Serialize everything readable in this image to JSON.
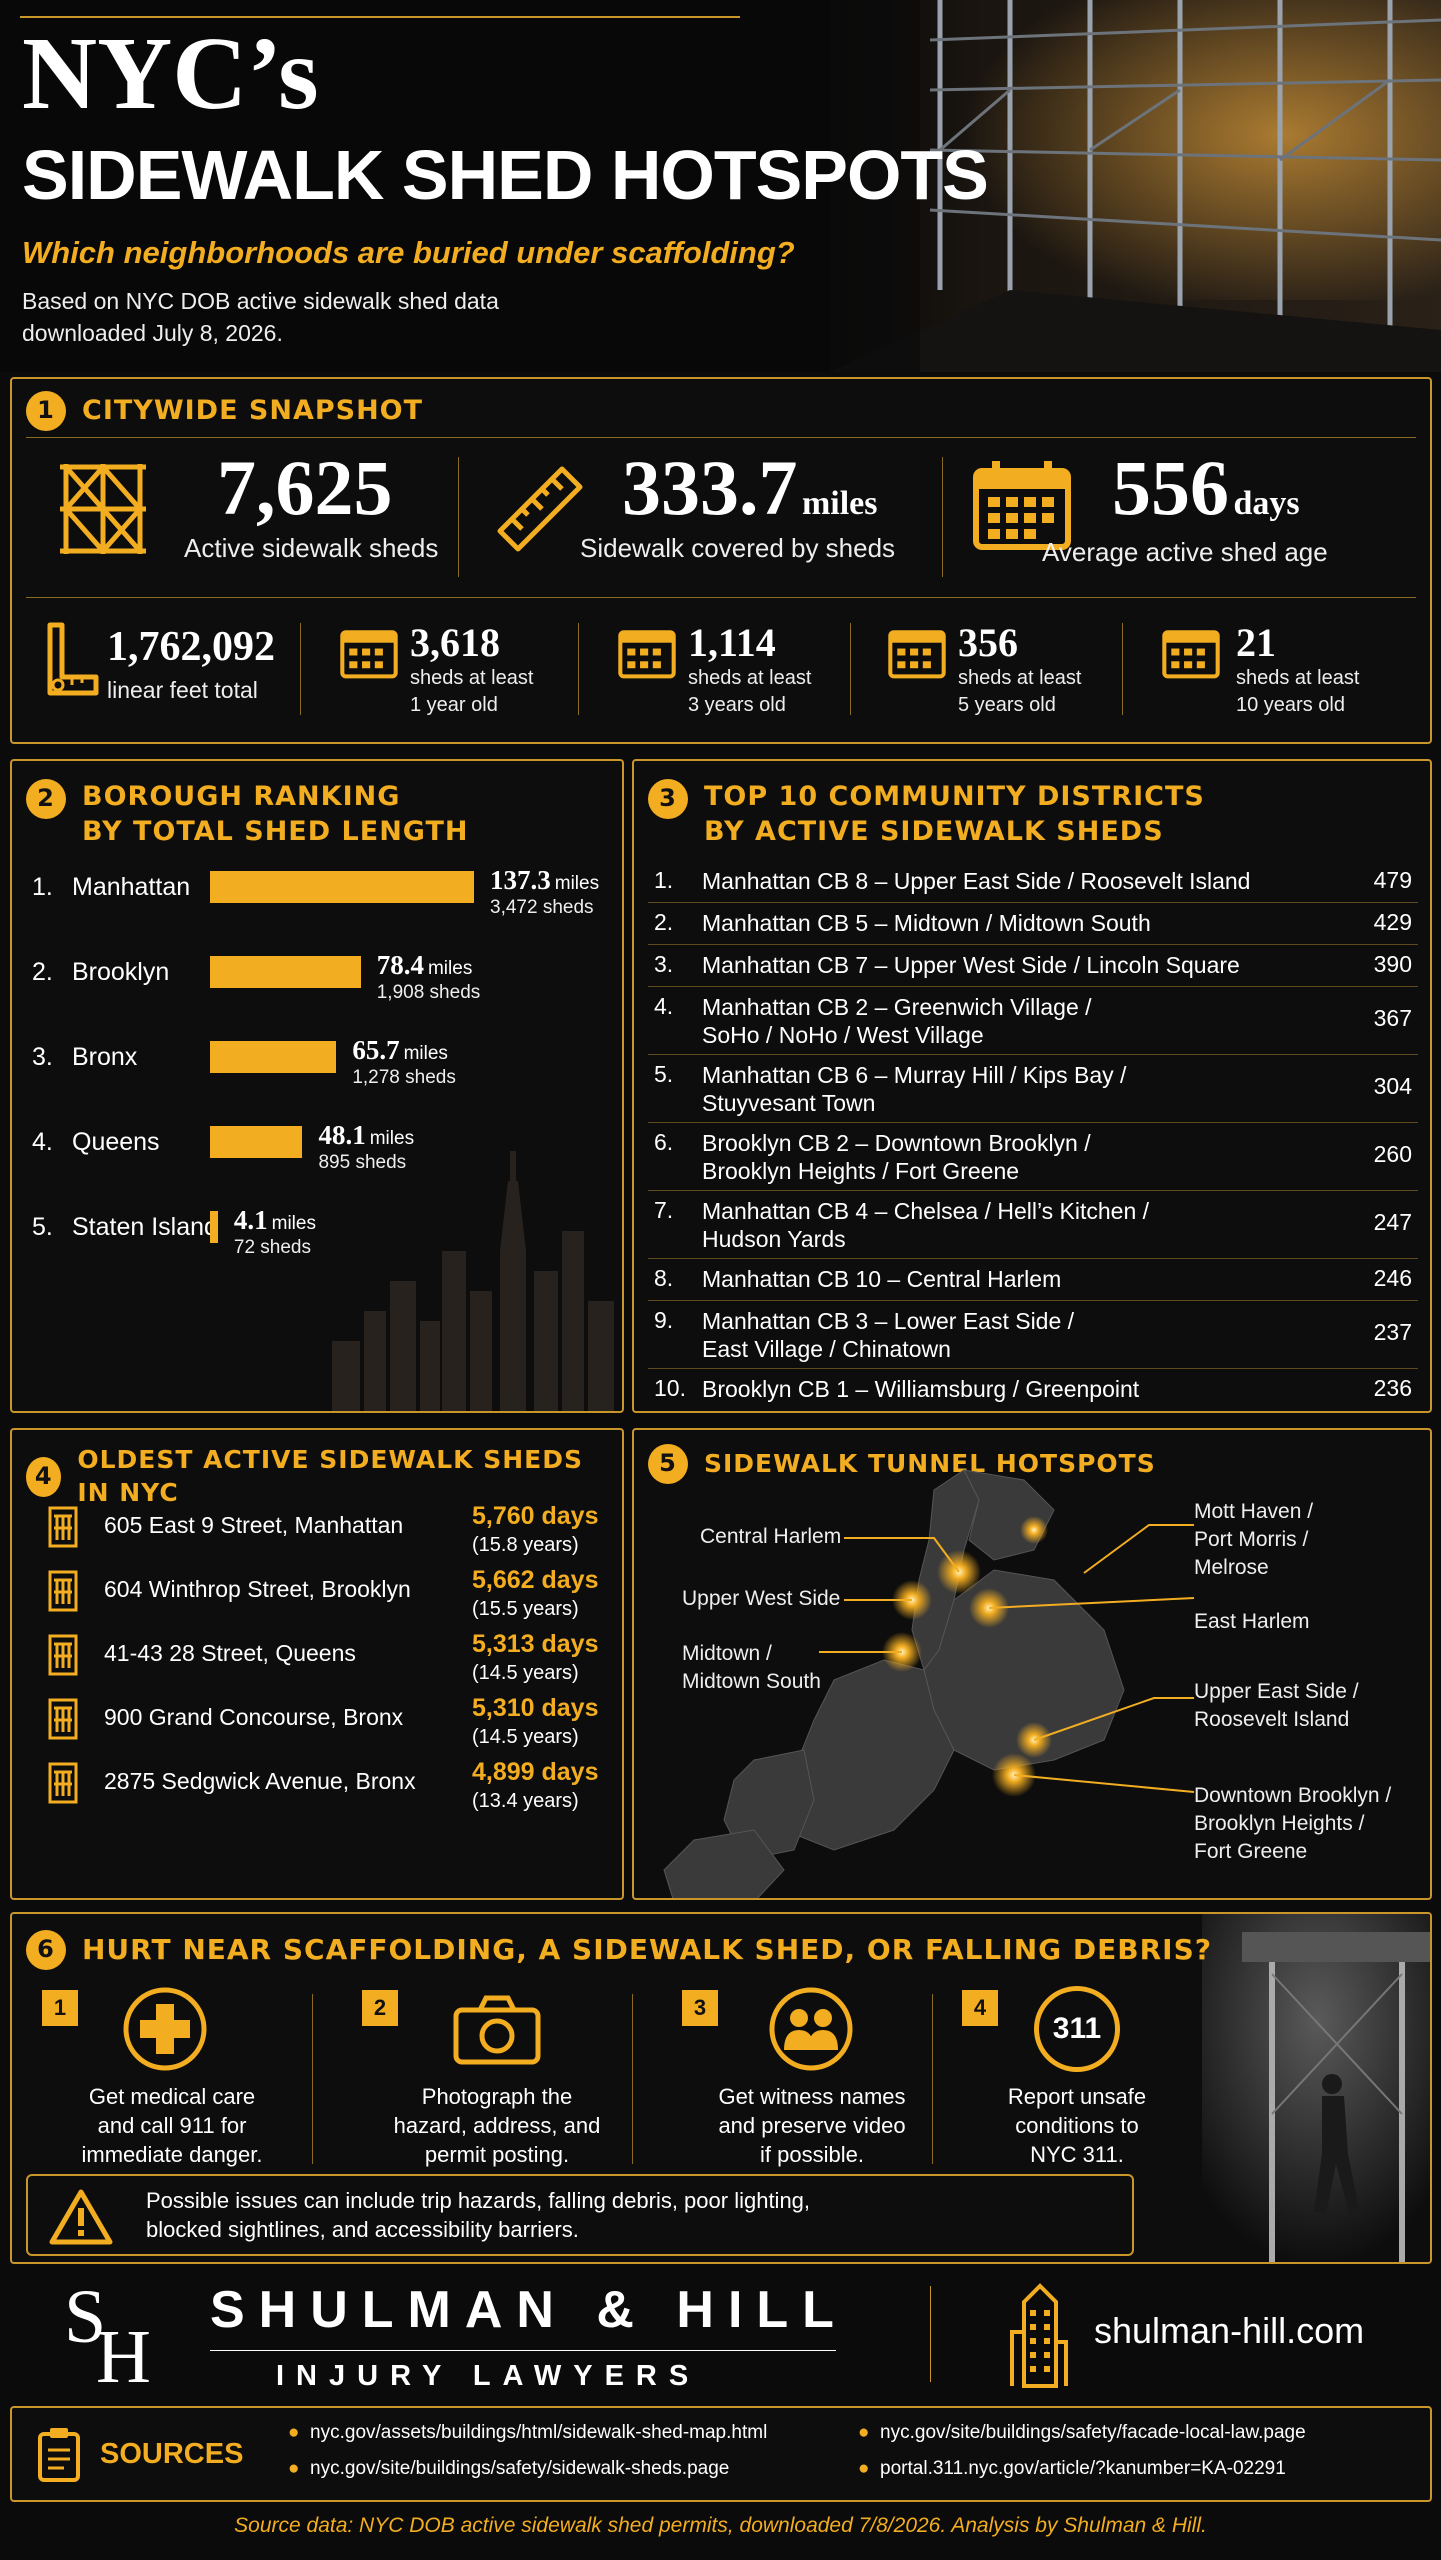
{
  "header": {
    "title_line1": "NYC’s",
    "title_line2": "SIDEWALK SHED HOTSPOTS",
    "subtitle": "Which neighborhoods are buried under scaffolding?",
    "description_line1": "Based on NYC DOB active sidewalk shed data",
    "description_line2": "downloaded July 8, 2026."
  },
  "snapshot": {
    "number": "1",
    "title": "CITYWIDE SNAPSHOT",
    "main_stats": [
      {
        "value": "7,625",
        "unit": "",
        "label": "Active sidewalk sheds",
        "icon": "scaffold-icon"
      },
      {
        "value": "333.7",
        "unit": "miles",
        "label": "Sidewalk covered by sheds",
        "icon": "ruler-icon"
      },
      {
        "value": "556",
        "unit": "days",
        "label": "Average active shed age",
        "icon": "calendar-icon"
      }
    ],
    "sub_stats": [
      {
        "value": "1,762,092",
        "label1": "linear feet total",
        "label2": "",
        "icon": "measuring-tape-icon"
      },
      {
        "value": "3,618",
        "label1": "sheds at least",
        "label2": "1 year old",
        "icon": "calendar-icon"
      },
      {
        "value": "1,114",
        "label1": "sheds at least",
        "label2": "3 years old",
        "icon": "calendar-icon"
      },
      {
        "value": "356",
        "label1": "sheds at least",
        "label2": "5 years old",
        "icon": "calendar-icon"
      },
      {
        "value": "21",
        "label1": "sheds at least",
        "label2": "10 years old",
        "icon": "calendar-icon"
      }
    ]
  },
  "borough": {
    "number": "2",
    "title_line1": "BOROUGH RANKING",
    "title_line2": "BY TOTAL SHED LENGTH",
    "unit": "miles"
  },
  "chart_data": {
    "type": "bar",
    "title": "BOROUGH RANKING BY TOTAL SHED LENGTH",
    "categories": [
      "Manhattan",
      "Brooklyn",
      "Bronx",
      "Queens",
      "Staten Island"
    ],
    "ranks": [
      "1.",
      "2.",
      "3.",
      "4.",
      "5."
    ],
    "values": [
      137.3,
      78.4,
      65.7,
      48.1,
      4.1
    ],
    "value_labels": [
      "137.3",
      "78.4",
      "65.7",
      "48.1",
      "4.1"
    ],
    "sheds": [
      "3,472 sheds",
      "1,908 sheds",
      "1,278 sheds",
      "895 sheds",
      "72 sheds"
    ],
    "bar_color": "#f2ad21"
  },
  "districts": {
    "number": "3",
    "title_line1": "TOP 10 COMMUNITY DISTRICTS",
    "title_line2": "BY ACTIVE SIDEWALK SHEDS",
    "rows": [
      {
        "rank": "1.",
        "line1": "Manhattan CB 8 – Upper East Side / Roosevelt Island",
        "line2": "",
        "count": "479"
      },
      {
        "rank": "2.",
        "line1": "Manhattan CB 5 – Midtown / Midtown South",
        "line2": "",
        "count": "429"
      },
      {
        "rank": "3.",
        "line1": "Manhattan CB 7 – Upper West Side / Lincoln Square",
        "line2": "",
        "count": "390"
      },
      {
        "rank": "4.",
        "line1": "Manhattan CB 2 – Greenwich Village /",
        "line2": "SoHo / NoHo / West Village",
        "count": "367"
      },
      {
        "rank": "5.",
        "line1": "Manhattan CB 6 – Murray Hill / Kips Bay /",
        "line2": "Stuyvesant Town",
        "count": "304"
      },
      {
        "rank": "6.",
        "line1": "Brooklyn CB 2 –  Downtown Brooklyn /",
        "line2": "Brooklyn Heights / Fort Greene",
        "count": "260"
      },
      {
        "rank": "7.",
        "line1": "Manhattan CB 4 – Chelsea / Hell’s Kitchen /",
        "line2": "Hudson Yards",
        "count": "247"
      },
      {
        "rank": "8.",
        "line1": "Manhattan CB 10 – Central Harlem",
        "line2": "",
        "count": "246"
      },
      {
        "rank": "9.",
        "line1": "Manhattan CB 3 – Lower East Side /",
        "line2": "East Village / Chinatown",
        "count": "237"
      },
      {
        "rank": "10.",
        "line1": "Brooklyn CB 1 – Williamsburg / Greenpoint",
        "line2": "",
        "count": "236"
      }
    ]
  },
  "oldest": {
    "number": "4",
    "title": "OLDEST ACTIVE SIDEWALK SHEDS IN NYC",
    "rows": [
      {
        "address": "605 East 9 Street, Manhattan",
        "days": "5,760 days",
        "years": "(15.8 years)"
      },
      {
        "address": "604 Winthrop Street, Brooklyn",
        "days": "5,662 days",
        "years": "(15.5 years)"
      },
      {
        "address": "41-43 28 Street, Queens",
        "days": "5,313 days",
        "years": "(14.5 years)"
      },
      {
        "address": "900 Grand Concourse, Bronx",
        "days": "5,310 days",
        "years": "(14.5 years)"
      },
      {
        "address": "2875 Sedgwick Avenue, Bronx",
        "days": "4,899 days",
        "years": "(13.4 years)"
      }
    ]
  },
  "tunnels": {
    "number": "5",
    "title": "SIDEWALK TUNNEL HOTSPOTS",
    "labels": {
      "central_harlem": "Central Harlem",
      "upper_west_side": "Upper West Side",
      "midtown_1": "Midtown /",
      "midtown_2": "Midtown South",
      "mott_1": "Mott Haven /",
      "mott_2": "Port Morris /",
      "mott_3": "Melrose",
      "east_harlem": "East Harlem",
      "ues_1": "Upper East Side /",
      "ues_2": "Roosevelt Island",
      "dtbk_1": "Downtown Brooklyn /",
      "dtbk_2": "Brooklyn Heights /",
      "dtbk_3": "Fort Greene"
    }
  },
  "hurt": {
    "number": "6",
    "title": "HURT NEAR SCAFFOLDING, A SIDEWALK SHED, OR FALLING DEBRIS?",
    "steps": [
      {
        "n": "1",
        "icon": "medical-cross-icon",
        "line1": "Get medical care",
        "line2": "and call 911 for",
        "line3": "immediate danger."
      },
      {
        "n": "2",
        "icon": "camera-icon",
        "line1": "Photograph the",
        "line2": "hazard, address, and",
        "line3": "permit posting."
      },
      {
        "n": "3",
        "icon": "witnesses-icon",
        "line1": "Get witness names",
        "line2": "and preserve video",
        "line3": "if possible."
      },
      {
        "n": "4",
        "icon": "311-icon",
        "line1": "Report unsafe",
        "line2": "conditions to",
        "line3": "NYC 311."
      }
    ],
    "icon_311_text": "311",
    "warning_line1": "Possible issues can include trip hazards, falling debris, poor lighting,",
    "warning_line2": "blocked sightlines, and accessibility barriers."
  },
  "brand": {
    "logo_s": "S",
    "logo_h": "H",
    "name": "SHULMAN & HILL",
    "tagline": "INJURY LAWYERS",
    "website": "shulman-hill.com"
  },
  "sources": {
    "title": "SOURCES",
    "links": [
      "nyc.gov/assets/buildings/html/sidewalk-shed-map.html",
      "nyc.gov/site/buildings/safety/sidewalk-sheds.page",
      "nyc.gov/site/buildings/safety/facade-local-law.page",
      "portal.311.nyc.gov/article/?kanumber=KA-02291"
    ]
  },
  "footer": {
    "note": "Source data: NYC DOB active sidewalk shed permits, downloaded 7/8/2026. Analysis by Shulman & Hill."
  },
  "colors": {
    "accent": "#f2ad21",
    "background": "#0b0b0b",
    "border": "#c9962a"
  }
}
